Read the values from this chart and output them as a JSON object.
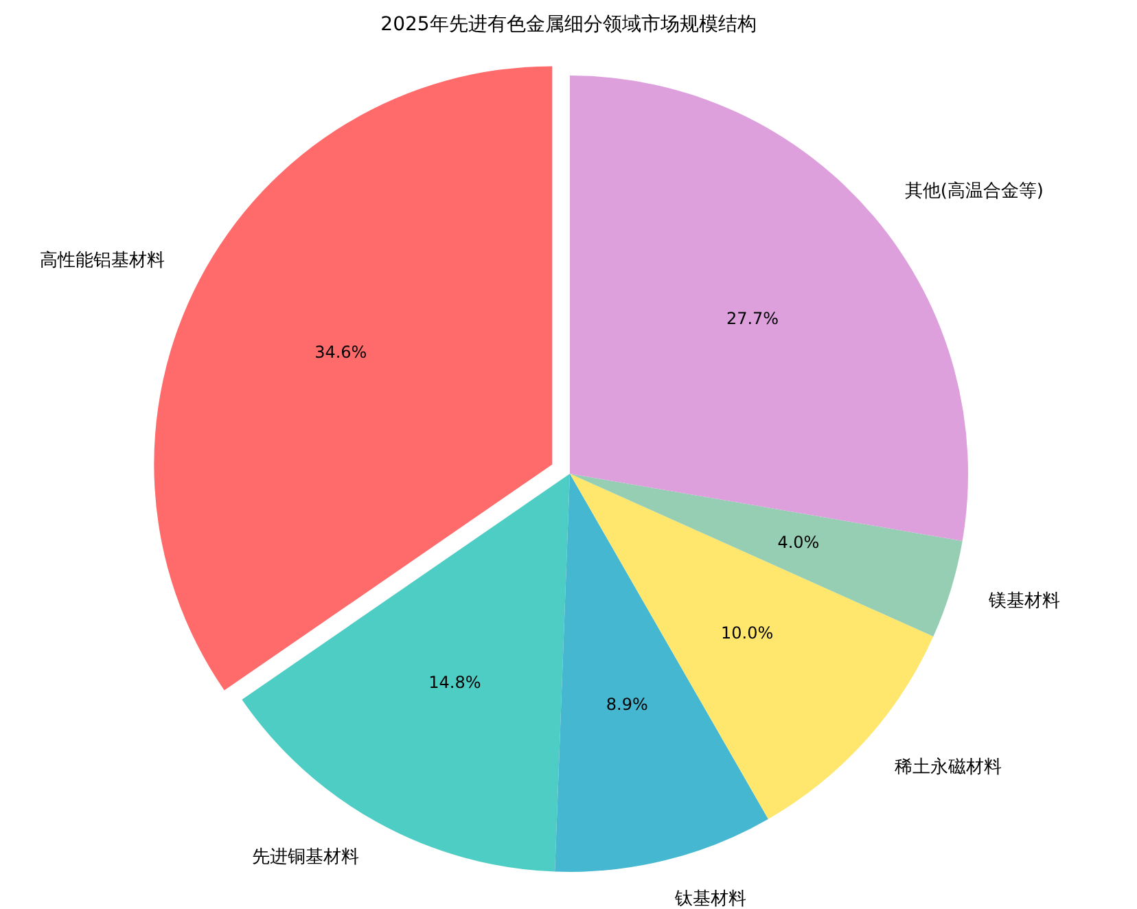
{
  "chart_data": {
    "type": "pie",
    "title": "2025年先进有色金属细分领域市场规模结构",
    "categories": [
      "高性能铝基材料",
      "先进铜基材料",
      "钛基材料",
      "稀土永磁材料",
      "镁基材料",
      "其他(高温合金等)"
    ],
    "values": [
      34.6,
      14.8,
      8.9,
      10.0,
      4.0,
      27.7
    ],
    "colors": [
      "#ff6b6b",
      "#4ecdc4",
      "#45b7d1",
      "#ffe66d",
      "#96ceb4",
      "#dda0dd"
    ],
    "value_labels": [
      "34.6%",
      "14.8%",
      "8.9%",
      "10.0%",
      "4.0%",
      "27.7%"
    ]
  }
}
